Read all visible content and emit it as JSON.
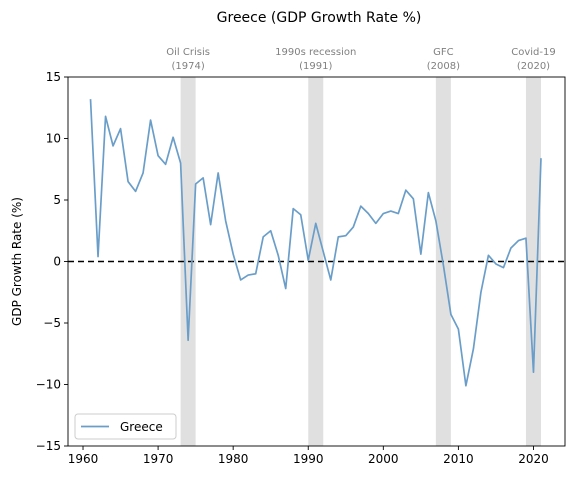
{
  "chart_data": {
    "type": "line",
    "title": "Greece (GDP Growth Rate %)",
    "xlabel": "",
    "ylabel": "GDP Growth Rate (%)",
    "xlim": [
      1958.0,
      2024.2
    ],
    "ylim": [
      -15,
      15
    ],
    "x_ticks": [
      1960,
      1970,
      1980,
      1990,
      2000,
      2010,
      2020
    ],
    "y_ticks": [
      -15,
      -10,
      -5,
      0,
      5,
      10,
      15
    ],
    "grid": false,
    "legend": {
      "position": "lower-left",
      "entries": [
        "Greece"
      ]
    },
    "reference_line": {
      "y": 0,
      "style": "dashed",
      "color": "#000000"
    },
    "line_color": "#6a9ec9",
    "shade_color": "#e0e0e0",
    "shaded_periods": [
      {
        "label": "Oil Crisis",
        "year_label": "(1974)",
        "start": 1973,
        "end": 1975
      },
      {
        "label": "1990s recession",
        "year_label": "(1991)",
        "start": 1990,
        "end": 1992
      },
      {
        "label": "GFC",
        "year_label": "(2008)",
        "start": 2007,
        "end": 2009
      },
      {
        "label": "Covid-19",
        "year_label": "(2020)",
        "start": 2019,
        "end": 2021
      }
    ],
    "series": [
      {
        "name": "Greece",
        "x": [
          1961,
          1962,
          1963,
          1964,
          1965,
          1966,
          1967,
          1968,
          1969,
          1970,
          1971,
          1972,
          1973,
          1974,
          1975,
          1976,
          1977,
          1978,
          1979,
          1980,
          1981,
          1982,
          1983,
          1984,
          1985,
          1986,
          1987,
          1988,
          1989,
          1990,
          1991,
          1992,
          1993,
          1994,
          1995,
          1996,
          1997,
          1998,
          1999,
          2000,
          2001,
          2002,
          2003,
          2004,
          2005,
          2006,
          2007,
          2008,
          2009,
          2010,
          2011,
          2012,
          2013,
          2014,
          2015,
          2016,
          2017,
          2018,
          2019,
          2020,
          2021
        ],
        "y": [
          13.2,
          0.4,
          11.8,
          9.4,
          10.8,
          6.5,
          5.7,
          7.2,
          11.5,
          8.6,
          7.9,
          10.1,
          8.0,
          -6.4,
          6.3,
          6.8,
          3.0,
          7.2,
          3.3,
          0.6,
          -1.5,
          -1.1,
          -1.0,
          2.0,
          2.5,
          0.5,
          -2.2,
          4.3,
          3.8,
          0.1,
          3.1,
          0.8,
          -1.5,
          2.0,
          2.1,
          2.8,
          4.5,
          3.9,
          3.1,
          3.9,
          4.1,
          3.9,
          5.8,
          5.1,
          0.6,
          5.6,
          3.3,
          -0.3,
          -4.3,
          -5.5,
          -10.1,
          -7.1,
          -2.5,
          0.5,
          -0.2,
          -0.5,
          1.1,
          1.7,
          1.9,
          -9.0,
          8.4
        ]
      }
    ]
  }
}
